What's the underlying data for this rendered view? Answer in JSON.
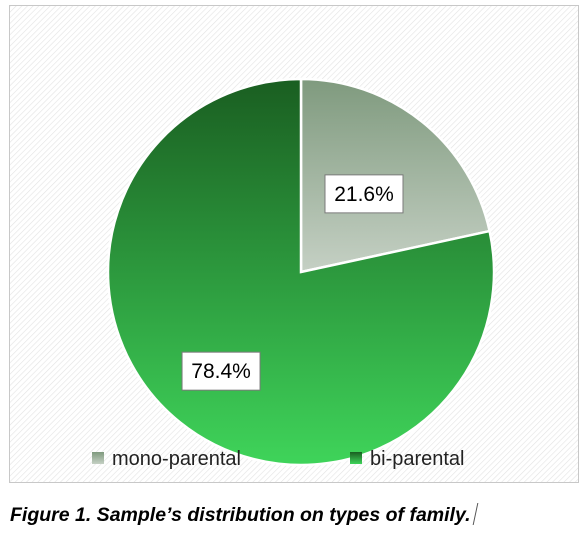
{
  "chart_data": {
    "type": "pie",
    "categories": [
      "mono-parental",
      "bi-parental"
    ],
    "values": [
      21.6,
      78.4
    ],
    "labels": [
      "21.6%",
      "78.4%"
    ],
    "colors": [
      "#8fa88e",
      "#2c8f3a"
    ],
    "legend": "bottom"
  },
  "caption": "Figure 1. Sample’s distribution on types of family."
}
